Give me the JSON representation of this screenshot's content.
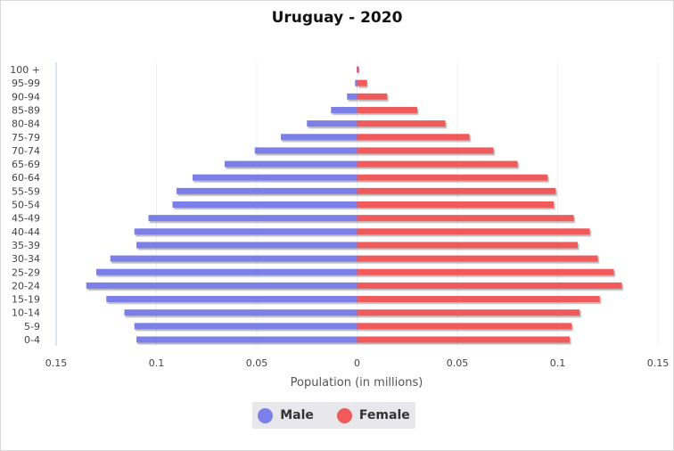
{
  "chart_data": {
    "type": "bar",
    "orientation": "horizontal",
    "title": "Uruguay - 2020",
    "xlabel": "Population (in millions)",
    "ylabel": "",
    "xlim": [
      -0.15,
      0.15
    ],
    "x_ticks": [
      -0.15,
      -0.1,
      -0.05,
      0,
      0.05,
      0.1,
      0.15
    ],
    "x_tick_labels": [
      "0.15",
      "0.1",
      "0.05",
      "0",
      "0.05",
      "0.1",
      "0.15"
    ],
    "grid": true,
    "legend_position": "bottom",
    "categories": [
      "0-4",
      "5-9",
      "10-14",
      "15-19",
      "20-24",
      "25-29",
      "30-34",
      "35-39",
      "40-44",
      "45-49",
      "50-54",
      "55-59",
      "60-64",
      "65-69",
      "70-74",
      "75-79",
      "80-84",
      "85-89",
      "90-94",
      "95-99",
      "100 +"
    ],
    "series": [
      {
        "name": "Male",
        "color": "#7b7fe8",
        "values": [
          0.11,
          0.111,
          0.116,
          0.125,
          0.135,
          0.13,
          0.123,
          0.11,
          0.111,
          0.104,
          0.092,
          0.09,
          0.082,
          0.066,
          0.051,
          0.038,
          0.025,
          0.013,
          0.005,
          0.001,
          0.0002
        ]
      },
      {
        "name": "Female",
        "color": "#f15a5a",
        "values": [
          0.106,
          0.107,
          0.111,
          0.121,
          0.132,
          0.128,
          0.12,
          0.11,
          0.116,
          0.108,
          0.098,
          0.099,
          0.095,
          0.08,
          0.068,
          0.056,
          0.044,
          0.03,
          0.015,
          0.005,
          0.001
        ]
      }
    ]
  }
}
